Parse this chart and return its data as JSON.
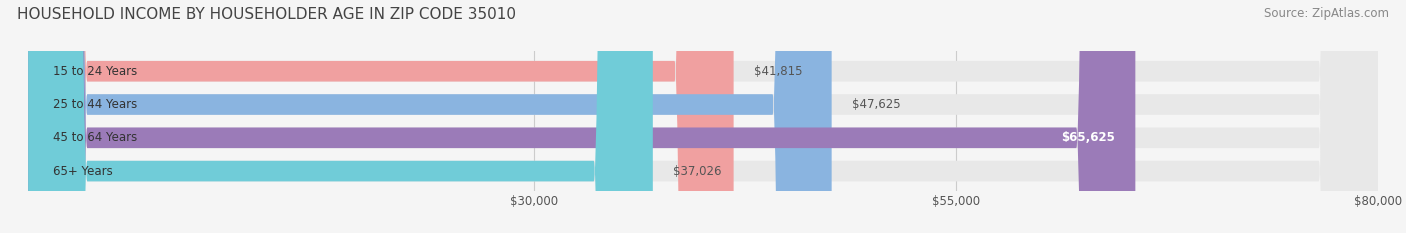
{
  "title": "HOUSEHOLD INCOME BY HOUSEHOLDER AGE IN ZIP CODE 35010",
  "source": "Source: ZipAtlas.com",
  "categories": [
    "15 to 24 Years",
    "25 to 44 Years",
    "45 to 64 Years",
    "65+ Years"
  ],
  "values": [
    41815,
    47625,
    65625,
    37026
  ],
  "bar_colors": [
    "#f0a0a0",
    "#8ab4e0",
    "#9b7bb8",
    "#70ccd8"
  ],
  "label_colors": [
    "#555555",
    "#555555",
    "#ffffff",
    "#555555"
  ],
  "bar_labels": [
    "$41,815",
    "$47,625",
    "$65,625",
    "$37,026"
  ],
  "x_min": 0,
  "x_max": 80000,
  "x_ticks": [
    30000,
    55000,
    80000
  ],
  "x_tick_labels": [
    "$30,000",
    "$55,000",
    "$80,000"
  ],
  "background_color": "#f5f5f5",
  "bar_background_color": "#e8e8e8",
  "title_fontsize": 11,
  "source_fontsize": 8.5,
  "label_fontsize": 8.5,
  "cat_fontsize": 8.5,
  "tick_fontsize": 8.5,
  "bar_height": 0.62,
  "rounding_size": 3500
}
